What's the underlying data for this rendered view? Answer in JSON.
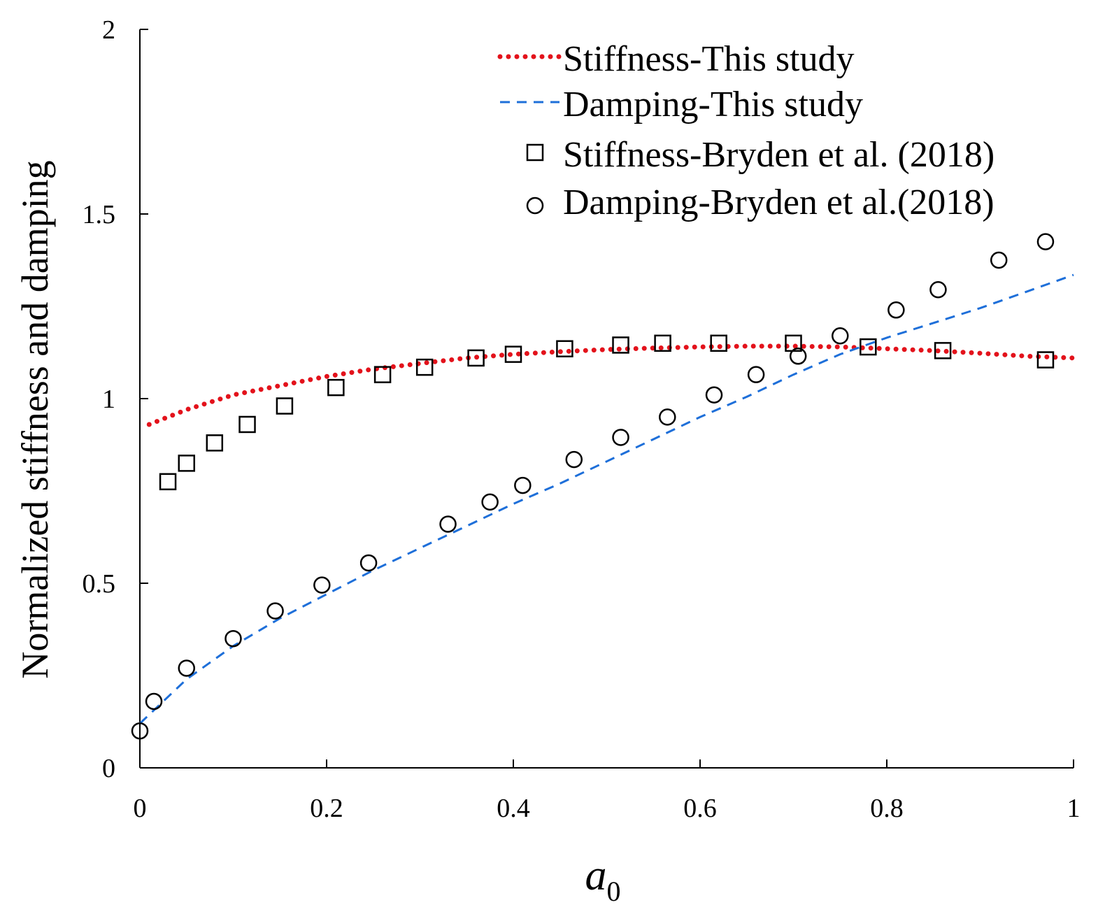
{
  "chart_data": {
    "type": "line",
    "title": "",
    "xlabel": "a",
    "xlabel_subscript": "0",
    "ylabel": "Normalized stiffness and damping",
    "xlim": [
      0,
      1
    ],
    "ylim": [
      0,
      2
    ],
    "x_ticks": [
      0,
      0.2,
      0.4,
      0.6,
      0.8,
      1
    ],
    "y_ticks": [
      0,
      0.5,
      1,
      1.5,
      2
    ],
    "x_tick_labels": [
      "0",
      "0.2",
      "0.4",
      "0.6",
      "0.8",
      "1"
    ],
    "y_tick_labels": [
      "0",
      "0.5",
      "1",
      "1.5",
      "2"
    ],
    "grid": false,
    "legend_position": "top-right",
    "series": [
      {
        "name": "Stiffness-This study",
        "kind": "line",
        "style": "dotted",
        "color": "#e3121b",
        "x": [
          0.01,
          0.05,
          0.1,
          0.15,
          0.2,
          0.25,
          0.3,
          0.35,
          0.4,
          0.45,
          0.5,
          0.55,
          0.6,
          0.65,
          0.7,
          0.75,
          0.8,
          0.85,
          0.9,
          0.95,
          1.0
        ],
        "y": [
          0.93,
          0.97,
          1.01,
          1.035,
          1.06,
          1.08,
          1.095,
          1.11,
          1.12,
          1.127,
          1.133,
          1.137,
          1.14,
          1.142,
          1.142,
          1.14,
          1.135,
          1.13,
          1.123,
          1.115,
          1.11
        ]
      },
      {
        "name": "Damping-This study",
        "kind": "line",
        "style": "dashed",
        "color": "#1e6fd9",
        "x": [
          0.0,
          0.05,
          0.1,
          0.15,
          0.2,
          0.25,
          0.3,
          0.35,
          0.4,
          0.45,
          0.5,
          0.55,
          0.6,
          0.65,
          0.7,
          0.75,
          0.8,
          0.85,
          0.9,
          0.95,
          1.0
        ],
        "y": [
          0.12,
          0.24,
          0.33,
          0.405,
          0.47,
          0.535,
          0.595,
          0.655,
          0.715,
          0.77,
          0.83,
          0.89,
          0.95,
          1.005,
          1.065,
          1.12,
          1.165,
          1.205,
          1.245,
          1.29,
          1.335
        ]
      },
      {
        "name": "Stiffness-Bryden et al. (2018)",
        "kind": "scatter",
        "marker": "square",
        "color": "#000000",
        "x": [
          0.03,
          0.05,
          0.08,
          0.115,
          0.155,
          0.21,
          0.26,
          0.305,
          0.36,
          0.4,
          0.455,
          0.515,
          0.56,
          0.62,
          0.7,
          0.78,
          0.86,
          0.97
        ],
        "y": [
          0.775,
          0.825,
          0.88,
          0.93,
          0.98,
          1.03,
          1.065,
          1.085,
          1.11,
          1.12,
          1.135,
          1.145,
          1.15,
          1.15,
          1.15,
          1.14,
          1.13,
          1.105
        ]
      },
      {
        "name": "Damping-Bryden et al.(2018)",
        "kind": "scatter",
        "marker": "circle",
        "color": "#000000",
        "x": [
          0.0,
          0.015,
          0.05,
          0.1,
          0.145,
          0.195,
          0.245,
          0.33,
          0.375,
          0.41,
          0.465,
          0.515,
          0.565,
          0.615,
          0.66,
          0.705,
          0.75,
          0.81,
          0.855,
          0.92,
          0.97
        ],
        "y": [
          0.1,
          0.18,
          0.27,
          0.35,
          0.425,
          0.495,
          0.555,
          0.66,
          0.72,
          0.765,
          0.835,
          0.895,
          0.95,
          1.01,
          1.065,
          1.115,
          1.17,
          1.24,
          1.295,
          1.375,
          1.425
        ]
      }
    ]
  }
}
